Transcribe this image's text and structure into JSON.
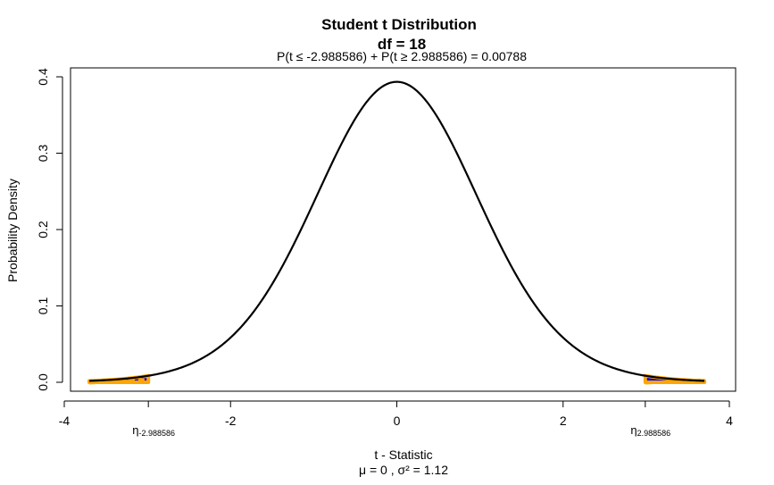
{
  "chart_data": {
    "type": "line",
    "title": "Student t Distribution",
    "subtitle": "df = 18",
    "annotation": "P(t ≤ -2.988586) + P(t ≥ 2.988586) = 0.00788",
    "xlabel": "t - Statistic",
    "xlabel_sub": "μ = 0 , σ² = 1.12",
    "ylabel": "Probability Density",
    "df": 18,
    "xlim": [
      -4,
      4
    ],
    "ylim": [
      0,
      0.4
    ],
    "x_ticks": [
      "-4",
      "-2",
      "0",
      "2",
      "4"
    ],
    "y_ticks": [
      "0.0",
      "0.1",
      "0.2",
      "0.3",
      "0.4"
    ],
    "x_range": [
      -3.7,
      3.7
    ],
    "critical_values": [
      -2.988586,
      2.988586
    ],
    "critical_labels": [
      {
        "symbol": "η",
        "value": "-2.988586"
      },
      {
        "symbol": "η",
        "value": "2.988586"
      }
    ],
    "series": [
      {
        "color": "#000000",
        "shape": "curve"
      },
      {
        "color": "#ffa500",
        "shape": "shaded-tails"
      },
      {
        "color": "#0000ff",
        "shape": "tail-fill"
      }
    ],
    "grid": false
  }
}
